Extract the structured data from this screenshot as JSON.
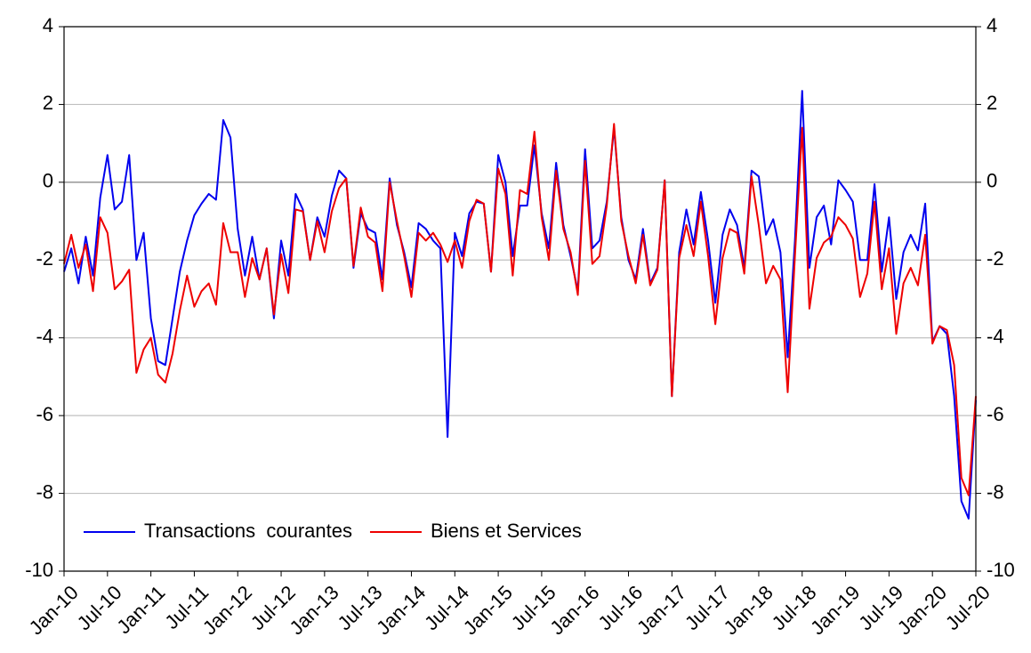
{
  "chart_data": {
    "type": "line",
    "categories": [
      "Jan-10",
      null,
      null,
      null,
      null,
      null,
      "Jul-10",
      null,
      null,
      null,
      null,
      null,
      "Jan-11",
      null,
      null,
      null,
      null,
      null,
      "Jul-11",
      null,
      null,
      null,
      null,
      null,
      "Jan-12",
      null,
      null,
      null,
      null,
      null,
      "Jul-12",
      null,
      null,
      null,
      null,
      null,
      "Jan-13",
      null,
      null,
      null,
      null,
      null,
      "Jul-13",
      null,
      null,
      null,
      null,
      null,
      "Jan-14",
      null,
      null,
      null,
      null,
      null,
      "Jul-14",
      null,
      null,
      null,
      null,
      null,
      "Jan-15",
      null,
      null,
      null,
      null,
      null,
      "Jul-15",
      null,
      null,
      null,
      null,
      null,
      "Jan-16",
      null,
      null,
      null,
      null,
      null,
      "Jul-16",
      null,
      null,
      null,
      null,
      null,
      "Jan-17",
      null,
      null,
      null,
      null,
      null,
      "Jul-17",
      null,
      null,
      null,
      null,
      null,
      "Jan-18",
      null,
      null,
      null,
      null,
      null,
      "Jul-18",
      null,
      null,
      null,
      null,
      null,
      "Jan-19",
      null,
      null,
      null,
      null,
      null,
      "Jul-19",
      null,
      null,
      null,
      null,
      null,
      "Jan-20",
      null,
      null,
      null,
      null,
      null,
      "Jul-20"
    ],
    "series": [
      {
        "name": "Transactions  courantes",
        "color": "#0000ee",
        "values": [
          -2.3,
          -1.7,
          -2.6,
          -1.4,
          -2.4,
          -0.4,
          0.7,
          -0.7,
          -0.5,
          0.7,
          -2.0,
          -1.3,
          -3.5,
          -4.6,
          -4.7,
          -3.5,
          -2.3,
          -1.5,
          -0.85,
          -0.55,
          -0.3,
          -0.45,
          1.6,
          1.15,
          -1.2,
          -2.4,
          -1.4,
          -2.5,
          -1.7,
          -3.5,
          -1.5,
          -2.4,
          -0.3,
          -0.7,
          -2.0,
          -0.9,
          -1.4,
          -0.35,
          0.3,
          0.1,
          -2.2,
          -0.8,
          -1.2,
          -1.3,
          -2.5,
          0.1,
          -1.1,
          -1.8,
          -2.7,
          -1.05,
          -1.2,
          -1.5,
          -1.7,
          -6.55,
          -1.3,
          -1.9,
          -0.8,
          -0.5,
          -0.55,
          -2.3,
          0.7,
          0.0,
          -1.9,
          -0.6,
          -0.6,
          0.95,
          -0.8,
          -1.7,
          0.5,
          -1.1,
          -1.9,
          -2.8,
          0.85,
          -1.7,
          -1.5,
          -0.5,
          1.4,
          -0.9,
          -2.0,
          -2.5,
          -1.2,
          -2.6,
          -2.2,
          0.05,
          -5.5,
          -1.8,
          -0.7,
          -1.6,
          -0.25,
          -1.5,
          -3.1,
          -1.35,
          -0.7,
          -1.1,
          -2.2,
          0.3,
          0.15,
          -1.35,
          -0.95,
          -1.8,
          -4.5,
          -1.5,
          2.35,
          -2.2,
          -0.9,
          -0.6,
          -1.6,
          0.05,
          -0.2,
          -0.5,
          -2.0,
          -2.0,
          -0.05,
          -2.3,
          -0.9,
          -3.0,
          -1.8,
          -1.35,
          -1.75,
          -0.55,
          -4.1,
          -3.7,
          -3.9,
          -5.5,
          -8.2,
          -8.65,
          -5.6
        ]
      },
      {
        "name": "Biens et Services",
        "color": "#ee0000",
        "values": [
          -2.1,
          -1.35,
          -2.2,
          -1.6,
          -2.8,
          -0.9,
          -1.3,
          -2.75,
          -2.55,
          -2.25,
          -4.9,
          -4.3,
          -4.0,
          -4.95,
          -5.15,
          -4.4,
          -3.3,
          -2.4,
          -3.2,
          -2.8,
          -2.6,
          -3.15,
          -1.05,
          -1.8,
          -1.8,
          -2.95,
          -1.95,
          -2.5,
          -1.7,
          -3.4,
          -1.85,
          -2.85,
          -0.7,
          -0.75,
          -2.0,
          -1.0,
          -1.8,
          -0.75,
          -0.15,
          0.1,
          -2.15,
          -0.65,
          -1.4,
          -1.55,
          -2.8,
          0.0,
          -1.0,
          -1.9,
          -2.95,
          -1.3,
          -1.5,
          -1.3,
          -1.6,
          -2.05,
          -1.5,
          -2.2,
          -1.0,
          -0.45,
          -0.55,
          -2.3,
          0.35,
          -0.3,
          -2.4,
          -0.2,
          -0.3,
          1.3,
          -0.9,
          -2.0,
          0.3,
          -1.2,
          -1.8,
          -2.9,
          0.55,
          -2.1,
          -1.9,
          -0.6,
          1.5,
          -1.0,
          -1.9,
          -2.6,
          -1.35,
          -2.65,
          -2.25,
          0.05,
          -5.5,
          -1.95,
          -1.1,
          -1.9,
          -0.5,
          -1.9,
          -3.65,
          -1.95,
          -1.2,
          -1.3,
          -2.35,
          0.15,
          -1.1,
          -2.6,
          -2.15,
          -2.5,
          -5.4,
          -1.9,
          1.4,
          -3.25,
          -1.95,
          -1.55,
          -1.4,
          -0.9,
          -1.1,
          -1.45,
          -2.95,
          -2.35,
          -0.5,
          -2.75,
          -1.7,
          -3.9,
          -2.6,
          -2.2,
          -2.65,
          -1.35,
          -4.15,
          -3.7,
          -3.8,
          -4.7,
          -7.6,
          -8.05,
          -5.5
        ]
      }
    ],
    "ylim": [
      -10,
      4
    ],
    "yticks": [
      -10,
      -8,
      -6,
      -4,
      -2,
      0,
      2,
      4
    ],
    "y2lim": [
      -10,
      4
    ],
    "y2ticks": [
      -10,
      -8,
      -6,
      -4,
      -2,
      0,
      2,
      4
    ],
    "grid": true,
    "legend": "lower-left"
  }
}
